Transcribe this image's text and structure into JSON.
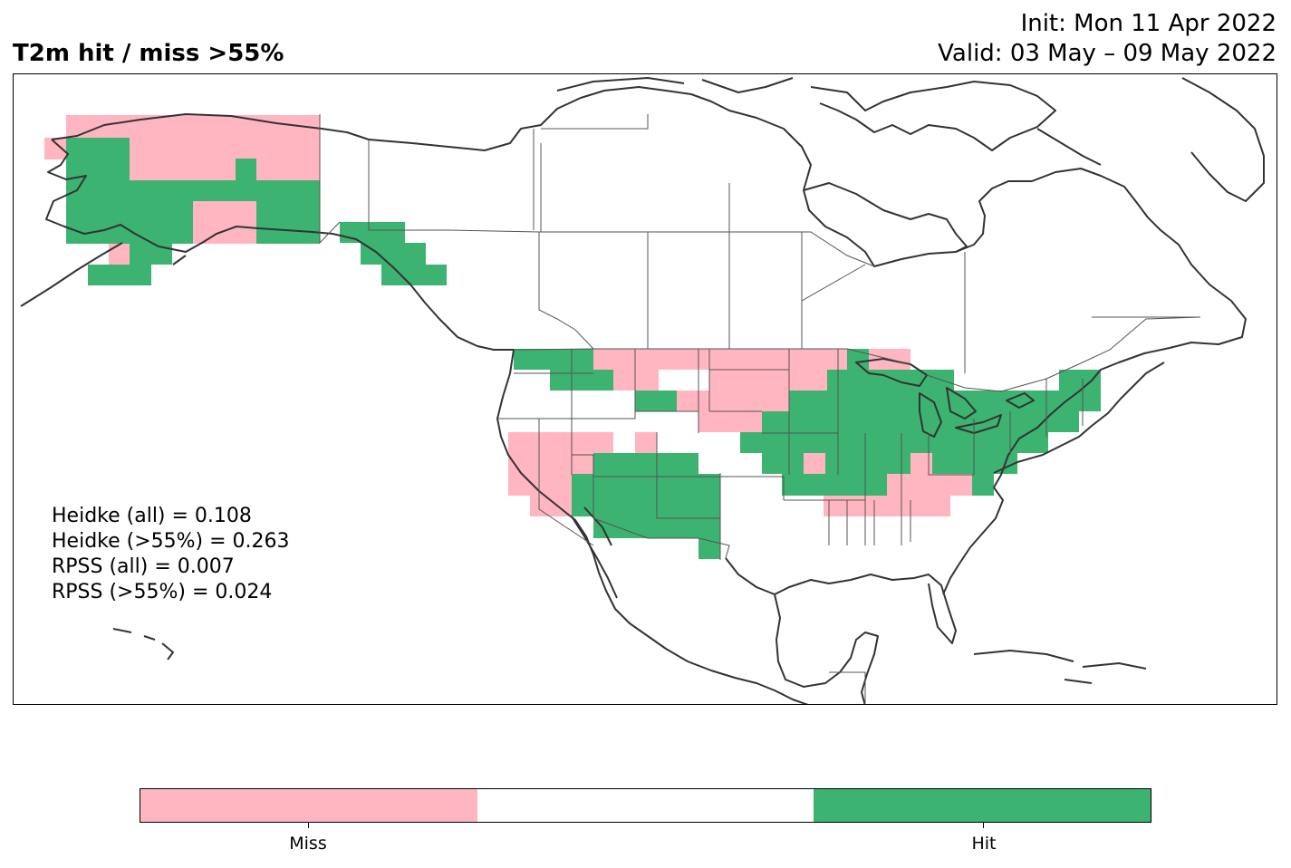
{
  "title": {
    "main": "T2m hit / miss  >55%",
    "init": "Init: Mon 11 Apr 2022",
    "valid": "Valid: 03 May – 09 May 2022"
  },
  "stats": {
    "heidke_all": "Heidke (all) = 0.108",
    "heidke_55": "Heidke (>55%) = 0.263",
    "rpss_all": "RPSS (all) = 0.007",
    "rpss_55": "RPSS (>55%) = 0.024"
  },
  "colors": {
    "miss": "#ffb6c1",
    "neutral": "#ffffff",
    "hit": "#3cb371",
    "coast": "#333333",
    "border": "#555555"
  },
  "colorbar": {
    "segments": [
      "miss",
      "neutral",
      "hit"
    ],
    "labels": {
      "miss": "Miss",
      "hit": "Hit"
    }
  }
}
